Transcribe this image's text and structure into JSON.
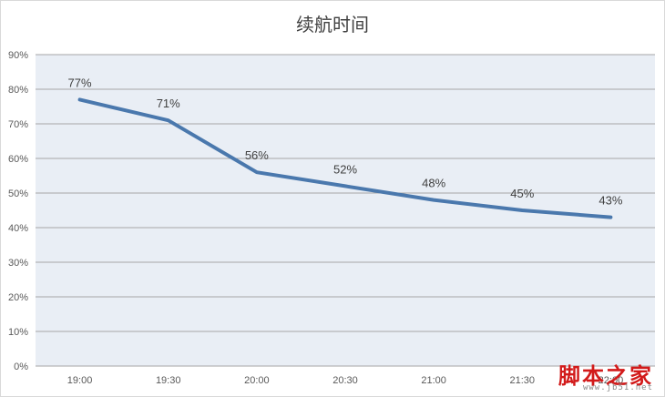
{
  "chart_data": {
    "type": "line",
    "title": "续航时间",
    "x": [
      "19:00",
      "19:30",
      "20:00",
      "20:30",
      "21:00",
      "21:30",
      "22:00"
    ],
    "series": [
      {
        "values": [
          77,
          71,
          56,
          52,
          48,
          45,
          43
        ]
      }
    ],
    "data_labels": [
      "77%",
      "71%",
      "56%",
      "52%",
      "48%",
      "45%",
      "43%"
    ],
    "y_ticks": [
      "0%",
      "10%",
      "20%",
      "30%",
      "40%",
      "50%",
      "60%",
      "70%",
      "80%",
      "90%"
    ],
    "ylim": [
      0,
      90
    ],
    "grid": true,
    "legend": "none",
    "colors": {
      "line": "#4a78ad",
      "plot_bg": "#e9eef5",
      "grid": "#a6a6a6"
    }
  },
  "watermark": {
    "main": "脚本之家",
    "sub": "www.jb51.net"
  }
}
